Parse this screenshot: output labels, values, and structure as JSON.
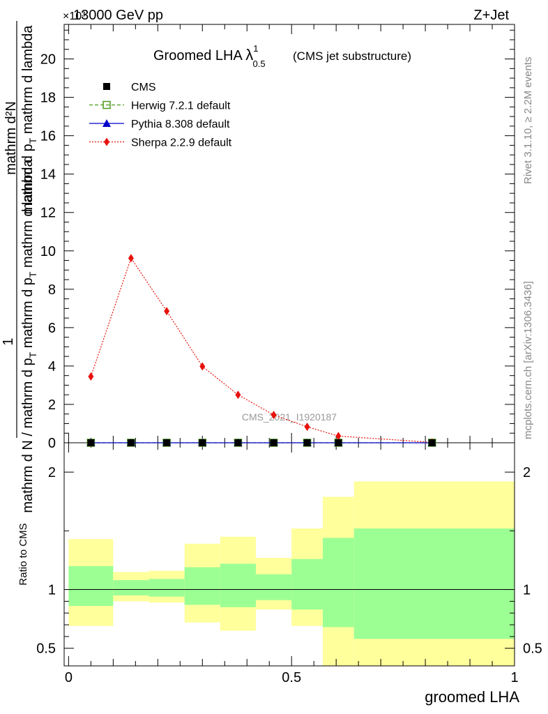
{
  "header": {
    "left": "13000 GeV pp",
    "right": "Z+Jet",
    "exponent": "×10³"
  },
  "side_labels": {
    "rivet": "Rivet 3.1.10, ≥ 2.2M events",
    "mcplots": "mcplots.cern.ch [arXiv:1306.3436]"
  },
  "watermark": "CMS_2021_I1920187",
  "chart_data": [
    {
      "type": "line",
      "title": "Groomed LHA",
      "title_symbol": "λ",
      "title_sup": "1",
      "title_sub": "0.5",
      "subtitle": "(CMS jet substructure)",
      "ylabel_top": "1",
      "ylabel_numerator": "mathrm d²N",
      "ylabel_denominator": "mathrm d p",
      "ylabel_denominator_sub": "T",
      "ylabel_denominator_rest": " mathrm d lambda",
      "ylabel_left": "mathrm d N / mathrm d p",
      "ylabel_left_sub": "T",
      "ylabel_left_rest": " mathrm d p",
      "ylabel_left_sub2": "T",
      "ylabel_left_rest2": " mathrm d lambda",
      "ylim": [
        0,
        21.8
      ],
      "xlim": [
        -0.01,
        1.0
      ],
      "y_ticks": [
        "0",
        "2",
        "4",
        "6",
        "8",
        "10",
        "12",
        "14",
        "16",
        "18",
        "20"
      ],
      "y_scale_note": "×10³",
      "legend_position": "top-left",
      "series": [
        {
          "name": "CMS",
          "marker": "square",
          "color": "#000000",
          "x": [
            0.05,
            0.14,
            0.22,
            0.3,
            0.38,
            0.46,
            0.535,
            0.605,
            0.815
          ],
          "y": [
            0.0,
            0.0,
            0.0,
            0.0,
            0.0,
            0.0,
            0.0,
            0.0,
            0.0
          ]
        },
        {
          "name": "Herwig 7.2.1 default",
          "marker": "open-square",
          "color": "#4a9a1a",
          "line": "dashed",
          "x": [
            0.05,
            0.14,
            0.22,
            0.3,
            0.38,
            0.46,
            0.535,
            0.605,
            0.815
          ],
          "y": [
            0.0,
            0.0,
            0.0,
            0.0,
            0.0,
            0.0,
            0.0,
            0.0,
            0.0
          ]
        },
        {
          "name": "Pythia 8.308 default",
          "marker": "triangle",
          "color": "#0000cc",
          "line": "solid",
          "x": [
            0.05,
            0.14,
            0.22,
            0.3,
            0.38,
            0.46,
            0.535,
            0.605,
            0.815
          ],
          "y": [
            0.0,
            0.0,
            0.0,
            0.0,
            0.0,
            0.0,
            0.0,
            0.0,
            0.0
          ]
        },
        {
          "name": "Sherpa 2.2.9 default",
          "marker": "diamond",
          "color": "#e8120c",
          "line": "dotted",
          "x": [
            0.05,
            0.14,
            0.22,
            0.3,
            0.38,
            0.46,
            0.535,
            0.605,
            0.815
          ],
          "y": [
            3.45,
            9.62,
            6.86,
            3.98,
            2.5,
            1.45,
            0.83,
            0.35,
            0.02
          ]
        }
      ]
    },
    {
      "type": "area",
      "ylabel": "Ratio to CMS",
      "xlabel": "groomed LHA",
      "ylim": [
        0.35,
        2.25
      ],
      "xlim": [
        -0.01,
        1.0
      ],
      "x_ticks": [
        "0",
        "0.5",
        "1"
      ],
      "y_ticks": [
        "0.5",
        "1",
        "2"
      ],
      "reference_line": 1,
      "band_colors": {
        "inner": "#9cff94",
        "outer": "#ffff9c"
      },
      "bins": [
        {
          "lo": 0.0,
          "hi": 0.1,
          "inner": [
            0.86,
            1.2
          ],
          "outer": [
            0.69,
            1.43
          ]
        },
        {
          "lo": 0.1,
          "hi": 0.18,
          "inner": [
            0.95,
            1.08
          ],
          "outer": [
            0.9,
            1.15
          ]
        },
        {
          "lo": 0.18,
          "hi": 0.26,
          "inner": [
            0.94,
            1.09
          ],
          "outer": [
            0.89,
            1.16
          ]
        },
        {
          "lo": 0.26,
          "hi": 0.34,
          "inner": [
            0.87,
            1.19
          ],
          "outer": [
            0.72,
            1.39
          ]
        },
        {
          "lo": 0.34,
          "hi": 0.42,
          "inner": [
            0.85,
            1.22
          ],
          "outer": [
            0.65,
            1.45
          ]
        },
        {
          "lo": 0.42,
          "hi": 0.5,
          "inner": [
            0.91,
            1.13
          ],
          "outer": [
            0.83,
            1.27
          ]
        },
        {
          "lo": 0.5,
          "hi": 0.57,
          "inner": [
            0.83,
            1.26
          ],
          "outer": [
            0.69,
            1.52
          ]
        },
        {
          "lo": 0.57,
          "hi": 0.64,
          "inner": [
            0.68,
            1.44
          ],
          "outer": [
            0.35,
            1.79
          ]
        },
        {
          "lo": 0.64,
          "hi": 1.0,
          "inner": [
            0.58,
            1.52
          ],
          "outer": [
            0.35,
            1.92
          ]
        }
      ]
    }
  ]
}
